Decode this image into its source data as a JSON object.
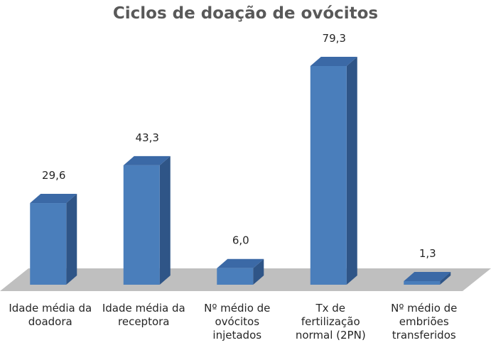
{
  "chart_data": {
    "type": "bar",
    "title": "Ciclos de doação de ovócitos",
    "xlabel": "",
    "ylabel": "",
    "categories": [
      [
        "Idade média da",
        "doadora"
      ],
      [
        "Idade média da",
        "receptora"
      ],
      [
        "Nº médio de",
        "ovócitos",
        "injetados"
      ],
      [
        "Tx de",
        "fertilização",
        "normal (2PN)"
      ],
      [
        "Nº médio de",
        "embriões",
        "transferidos"
      ]
    ],
    "values": [
      29.6,
      43.3,
      6.0,
      79.3,
      1.3
    ],
    "data_labels": [
      "29,6",
      "43,3",
      "6,0",
      "79,3",
      "1,3"
    ],
    "ylim": [
      0,
      79.3
    ],
    "grid": false,
    "legend": "none",
    "style": "3d-column",
    "colors": {
      "bar_front": "#4a7ebb",
      "bar_side": "#2f5587",
      "bar_top": "#3b69a6",
      "floor": "#bfbfbf",
      "title": "#595959",
      "text": "#262626"
    }
  }
}
